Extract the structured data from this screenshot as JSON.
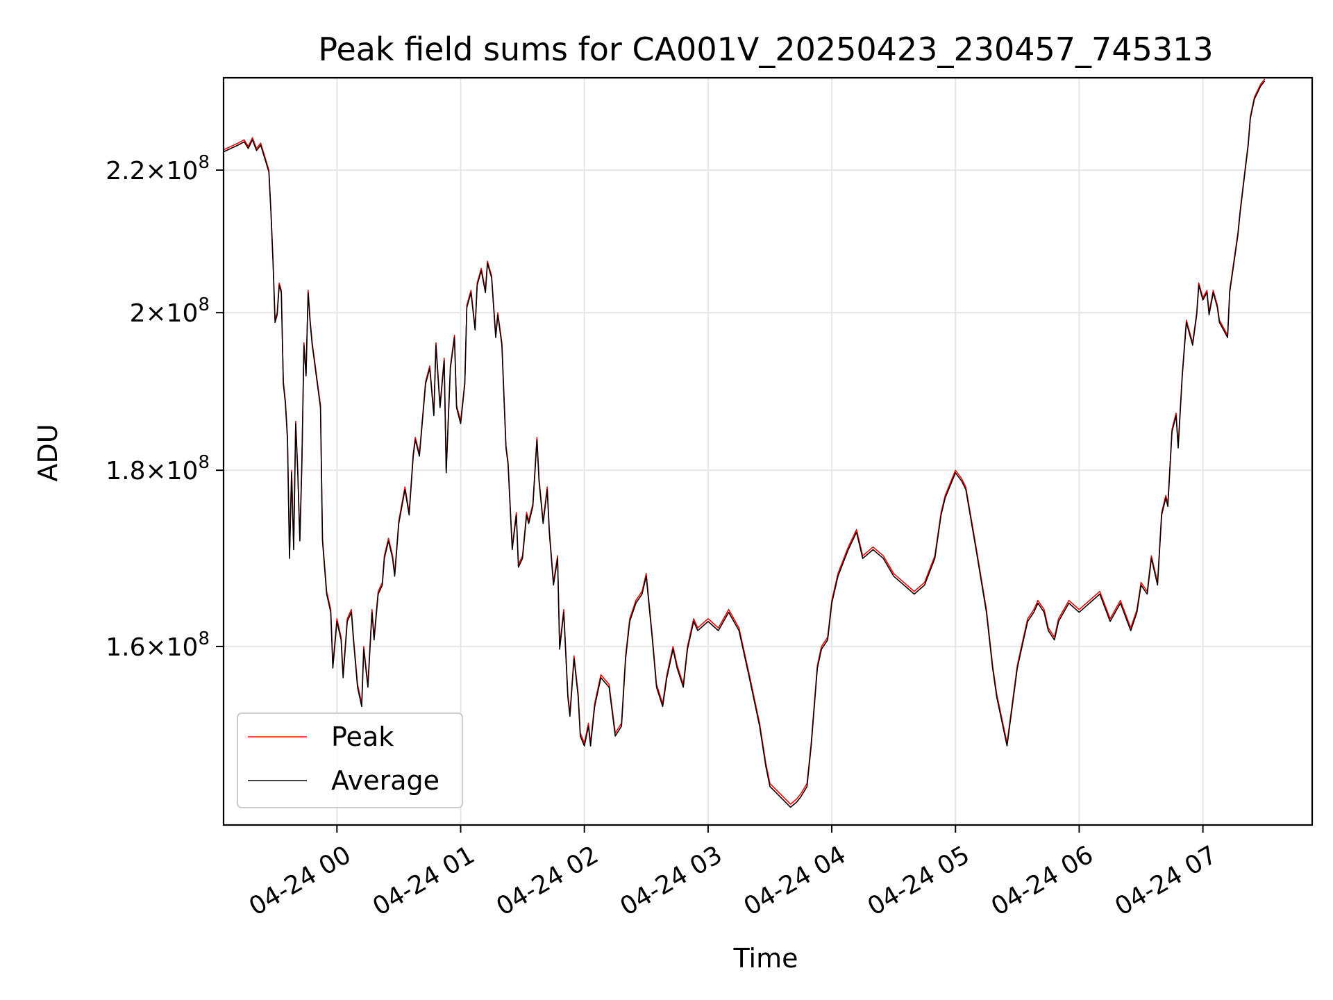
{
  "chart_data": {
    "type": "line",
    "title": "Peak field sums for CA001V_20250423_230457_745313",
    "xlabel": "Time",
    "ylabel": "ADU",
    "y_scale": "log",
    "grid": true,
    "legend_position": "lower-left",
    "x_range": [
      "04-23 23:05",
      "04-24 07:53"
    ],
    "ylim": [
      142000000,
      234000000
    ],
    "x_ticks": [
      "04-24 00",
      "04-24 01",
      "04-24 02",
      "04-24 03",
      "04-24 04",
      "04-24 05",
      "04-24 06",
      "04-24 07"
    ],
    "y_ticks": [
      {
        "value": 160000000,
        "mantissa": "1.6",
        "exponent": "8"
      },
      {
        "value": 180000000,
        "mantissa": "1.8",
        "exponent": "8"
      },
      {
        "value": 200000000,
        "mantissa": "2",
        "exponent": "8"
      },
      {
        "value": 220000000,
        "mantissa": "2.2",
        "exponent": "8"
      }
    ],
    "times": [
      "04-23 23:05",
      "04-23 23:12",
      "04-23 23:15",
      "04-23 23:17",
      "04-23 23:19",
      "04-23 23:21",
      "04-23 23:23",
      "04-23 23:25",
      "04-23 23:27",
      "04-23 23:28",
      "04-23 23:29",
      "04-23 23:30",
      "04-23 23:31",
      "04-23 23:32",
      "04-23 23:33",
      "04-23 23:34",
      "04-23 23:35",
      "04-23 23:36",
      "04-23 23:37",
      "04-23 23:38",
      "04-23 23:39",
      "04-23 23:40",
      "04-23 23:41",
      "04-23 23:42",
      "04-23 23:43",
      "04-23 23:44",
      "04-23 23:45",
      "04-23 23:46",
      "04-23 23:47",
      "04-23 23:48",
      "04-23 23:49",
      "04-23 23:50",
      "04-23 23:52",
      "04-23 23:53",
      "04-23 23:55",
      "04-23 23:57",
      "04-23 23:58",
      "04-24 00:00",
      "04-24 00:02",
      "04-24 00:03",
      "04-24 00:05",
      "04-24 00:07",
      "04-24 00:08",
      "04-24 00:10",
      "04-24 00:12",
      "04-24 00:13",
      "04-24 00:15",
      "04-24 00:17",
      "04-24 00:18",
      "04-24 00:20",
      "04-24 00:22",
      "04-24 00:23",
      "04-24 00:25",
      "04-24 00:27",
      "04-24 00:28",
      "04-24 00:30",
      "04-24 00:33",
      "04-24 00:35",
      "04-24 00:37",
      "04-24 00:38",
      "04-24 00:40",
      "04-24 00:42",
      "04-24 00:43",
      "04-24 00:45",
      "04-24 00:47",
      "04-24 00:48",
      "04-24 00:50",
      "04-24 00:52",
      "04-24 00:53",
      "04-24 00:55",
      "04-24 00:57",
      "04-24 00:58",
      "04-24 01:00",
      "04-24 01:02",
      "04-24 01:03",
      "04-24 01:05",
      "04-24 01:07",
      "04-24 01:08",
      "04-24 01:10",
      "04-24 01:12",
      "04-24 01:13",
      "04-24 01:15",
      "04-24 01:17",
      "04-24 01:18",
      "04-24 01:20",
      "04-24 01:22",
      "04-24 01:23",
      "04-24 01:25",
      "04-24 01:27",
      "04-24 01:28",
      "04-24 01:30",
      "04-24 01:32",
      "04-24 01:33",
      "04-24 01:35",
      "04-24 01:37",
      "04-24 01:38",
      "04-24 01:40",
      "04-24 01:42",
      "04-24 01:43",
      "04-24 01:45",
      "04-24 01:47",
      "04-24 01:48",
      "04-24 01:50",
      "04-24 01:52",
      "04-24 01:53",
      "04-24 01:55",
      "04-24 01:57",
      "04-24 01:58",
      "04-24 02:00",
      "04-24 02:02",
      "04-24 02:03",
      "04-24 02:05",
      "04-24 02:08",
      "04-24 02:12",
      "04-24 02:15",
      "04-24 02:18",
      "04-24 02:20",
      "04-24 02:22",
      "04-24 02:25",
      "04-24 02:28",
      "04-24 02:30",
      "04-24 02:33",
      "04-24 02:35",
      "04-24 02:38",
      "04-24 02:40",
      "04-24 02:43",
      "04-24 02:45",
      "04-24 02:48",
      "04-24 02:50",
      "04-24 02:53",
      "04-24 02:55",
      "04-24 03:00",
      "04-24 03:05",
      "04-24 03:10",
      "04-24 03:15",
      "04-24 03:20",
      "04-24 03:25",
      "04-24 03:28",
      "04-24 03:30",
      "04-24 03:35",
      "04-24 03:40",
      "04-24 03:43",
      "04-24 03:45",
      "04-24 03:48",
      "04-24 03:50",
      "04-24 03:53",
      "04-24 03:55",
      "04-24 03:58",
      "04-24 04:00",
      "04-24 04:03",
      "04-24 04:08",
      "04-24 04:12",
      "04-24 04:15",
      "04-24 04:20",
      "04-24 04:25",
      "04-24 04:30",
      "04-24 04:35",
      "04-24 04:40",
      "04-24 04:45",
      "04-24 04:50",
      "04-24 04:53",
      "04-24 04:55",
      "04-24 05:00",
      "04-24 05:03",
      "04-24 05:05",
      "04-24 05:10",
      "04-24 05:15",
      "04-24 05:18",
      "04-24 05:20",
      "04-24 05:25",
      "04-24 05:30",
      "04-24 05:33",
      "04-24 05:35",
      "04-24 05:38",
      "04-24 05:40",
      "04-24 05:43",
      "04-24 05:45",
      "04-24 05:48",
      "04-24 05:50",
      "04-24 05:55",
      "04-24 06:00",
      "04-24 06:05",
      "04-24 06:10",
      "04-24 06:15",
      "04-24 06:20",
      "04-24 06:25",
      "04-24 06:28",
      "04-24 06:30",
      "04-24 06:33",
      "04-24 06:35",
      "04-24 06:38",
      "04-24 06:40",
      "04-24 06:42",
      "04-24 06:43",
      "04-24 06:45",
      "04-24 06:47",
      "04-24 06:48",
      "04-24 06:50",
      "04-24 06:52",
      "04-24 06:53",
      "04-24 06:55",
      "04-24 06:57",
      "04-24 06:58",
      "04-24 07:00",
      "04-24 07:02",
      "04-24 07:03",
      "04-24 07:05",
      "04-24 07:07",
      "04-24 07:08",
      "04-24 07:10",
      "04-24 07:12",
      "04-24 07:13",
      "04-24 07:15",
      "04-24 07:17",
      "04-24 07:18",
      "04-24 07:20",
      "04-24 07:22",
      "04-24 07:23",
      "04-24 07:25",
      "04-24 07:28",
      "04-24 07:30",
      "04-24 07:32",
      "04-24 07:33",
      "04-24 07:35",
      "04-24 07:37",
      "04-24 07:38",
      "04-24 07:40",
      "04-24 07:42",
      "04-24 07:43",
      "04-24 07:45",
      "04-24 07:47",
      "04-24 07:48",
      "04-24 07:50",
      "04-24 07:52",
      "04-24 07:53"
    ],
    "series": [
      {
        "name": "Peak",
        "color": "#ff0000",
        "values": [
          223000000,
          224000000,
          224500000,
          223500000,
          224800000,
          223200000,
          224000000,
          222000000,
          220000000,
          214000000,
          207000000,
          199000000,
          200000000,
          204000000,
          203000000,
          191000000,
          188500000,
          184000000,
          170000000,
          180000000,
          171000000,
          186000000,
          180000000,
          172000000,
          181000000,
          196000000,
          192000000,
          203000000,
          199000000,
          196000000,
          194000000,
          192000000,
          188000000,
          172000000,
          166000000,
          164000000,
          158000000,
          163000000,
          161000000,
          157000000,
          163000000,
          164000000,
          161000000,
          156000000,
          154000000,
          160000000,
          156000000,
          164000000,
          161000000,
          166000000,
          167000000,
          170000000,
          172000000,
          170000000,
          168000000,
          174000000,
          178000000,
          175000000,
          182000000,
          184000000,
          182000000,
          188000000,
          191000000,
          193000000,
          187000000,
          196000000,
          188000000,
          194000000,
          180000000,
          193000000,
          197000000,
          188000000,
          186000000,
          191000000,
          201000000,
          203000000,
          198000000,
          204000000,
          206000000,
          203000000,
          207000000,
          205000000,
          197000000,
          200000000,
          196000000,
          183000000,
          181000000,
          171000000,
          175000000,
          169000000,
          170000000,
          175000000,
          174000000,
          176000000,
          184000000,
          179000000,
          174000000,
          178000000,
          173000000,
          167000000,
          170000000,
          160000000,
          164000000,
          155000000,
          153000000,
          159000000,
          155000000,
          151000000,
          150000000,
          152000000,
          150000000,
          154000000,
          157000000,
          156000000,
          151000000,
          152000000,
          159000000,
          163000000,
          165000000,
          166000000,
          168000000,
          161000000,
          156000000,
          154000000,
          157000000,
          160000000,
          158000000,
          156000000,
          160000000,
          163000000,
          162000000,
          163000000,
          162000000,
          164000000,
          162000000,
          157000000,
          152000000,
          148000000,
          146000000,
          145000000,
          144000000,
          144500000,
          145000000,
          146000000,
          150000000,
          158000000,
          160000000,
          161000000,
          165000000,
          168000000,
          171000000,
          173000000,
          170000000,
          171000000,
          170000000,
          168000000,
          167000000,
          166000000,
          167000000,
          170000000,
          175000000,
          177000000,
          180000000,
          179000000,
          178000000,
          171000000,
          164000000,
          158000000,
          155000000,
          150000000,
          158000000,
          161000000,
          163000000,
          164000000,
          165000000,
          164000000,
          162000000,
          161000000,
          163000000,
          165000000,
          164000000,
          165000000,
          166000000,
          163000000,
          165000000,
          162000000,
          164000000,
          167000000,
          166000000,
          170000000,
          167000000,
          175000000,
          177000000,
          176000000,
          185000000,
          187000000,
          183000000,
          192000000,
          199000000,
          198000000,
          196000000,
          200000000,
          204000000,
          202000000,
          203000000,
          200000000,
          203000000,
          201000000,
          199000000,
          198000000,
          197000000,
          203000000,
          207000000,
          211000000,
          214000000,
          219000000,
          224000000,
          228000000,
          231000000,
          233000000,
          233800000
        ]
      },
      {
        "name": "Average",
        "color": "#000000",
        "values": [
          222700000,
          223700000,
          224200000,
          223200000,
          224500000,
          222900000,
          223700000,
          221700000,
          219700000,
          213700000,
          206700000,
          198700000,
          199700000,
          203700000,
          202700000,
          190700000,
          188200000,
          183700000,
          169700000,
          179700000,
          170700000,
          185700000,
          179700000,
          171700000,
          180700000,
          195700000,
          191700000,
          202700000,
          198700000,
          195700000,
          193700000,
          191700000,
          187700000,
          171700000,
          165700000,
          163700000,
          157700000,
          162700000,
          160700000,
          156700000,
          162700000,
          163700000,
          160700000,
          155700000,
          153700000,
          159700000,
          155700000,
          163700000,
          160700000,
          165700000,
          166700000,
          169700000,
          171700000,
          169700000,
          167700000,
          173700000,
          177700000,
          174700000,
          181700000,
          183700000,
          181700000,
          187700000,
          190700000,
          192700000,
          186700000,
          195700000,
          187700000,
          193700000,
          179700000,
          192700000,
          196700000,
          187700000,
          185700000,
          190700000,
          200700000,
          202700000,
          197700000,
          203700000,
          205700000,
          202700000,
          206700000,
          204700000,
          196700000,
          199700000,
          195700000,
          182700000,
          180700000,
          170700000,
          174700000,
          168700000,
          169700000,
          174700000,
          173700000,
          175700000,
          183700000,
          178700000,
          173700000,
          177700000,
          172700000,
          166700000,
          169700000,
          159700000,
          163700000,
          154700000,
          152700000,
          158700000,
          154700000,
          150700000,
          149700000,
          151700000,
          149700000,
          153700000,
          156700000,
          155700000,
          150700000,
          151700000,
          158700000,
          162700000,
          164700000,
          165700000,
          167700000,
          160700000,
          155700000,
          153700000,
          156700000,
          159700000,
          157700000,
          155700000,
          159700000,
          162700000,
          161700000,
          162700000,
          161700000,
          163700000,
          161700000,
          156700000,
          151700000,
          147700000,
          145700000,
          144700000,
          143700000,
          144200000,
          144700000,
          145700000,
          149700000,
          157700000,
          159700000,
          160700000,
          164700000,
          167700000,
          170700000,
          172700000,
          169700000,
          170700000,
          169700000,
          167700000,
          166700000,
          165700000,
          166700000,
          169700000,
          174700000,
          176700000,
          179700000,
          178700000,
          177700000,
          170700000,
          163700000,
          157700000,
          154700000,
          149700000,
          157700000,
          160700000,
          162700000,
          163700000,
          164700000,
          163700000,
          161700000,
          160700000,
          162700000,
          164700000,
          163700000,
          164700000,
          165700000,
          162700000,
          164700000,
          161700000,
          163700000,
          166700000,
          165700000,
          169700000,
          166700000,
          174700000,
          176700000,
          175700000,
          184700000,
          186700000,
          182700000,
          191700000,
          198700000,
          197700000,
          195700000,
          199700000,
          203700000,
          201700000,
          202700000,
          199700000,
          202700000,
          200700000,
          198700000,
          197700000,
          196700000,
          202700000,
          206700000,
          210700000,
          213700000,
          218700000,
          223700000,
          227700000,
          230700000,
          232700000,
          233500000
        ]
      }
    ]
  }
}
